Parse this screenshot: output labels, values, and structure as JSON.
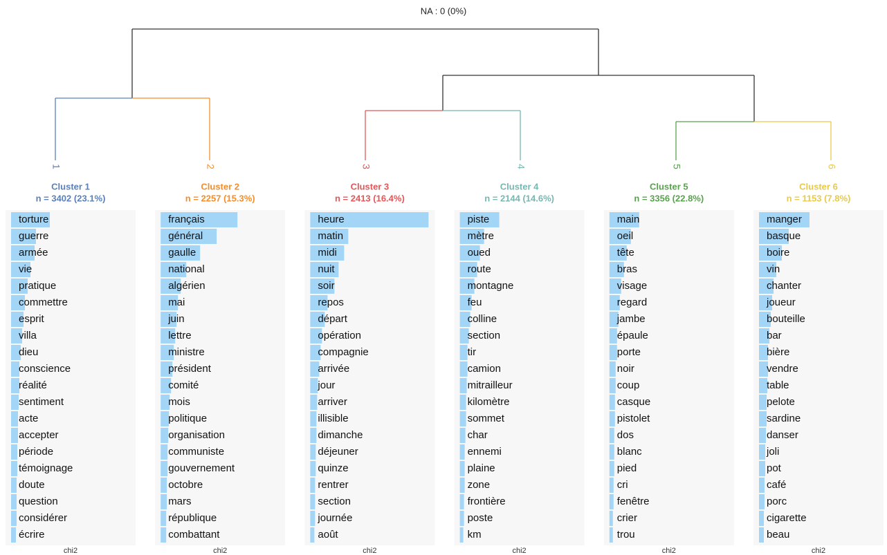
{
  "title": "NA : 0 (0%)",
  "chart_data": [
    {
      "type": "bar",
      "title": "Cluster 1",
      "subtitle": "n = 3402 (23.1%)",
      "leaf": "1",
      "color": "#5b80b8",
      "bar_color": "#a3d5f7",
      "xlabel": "chi2",
      "xlim": [
        0,
        180
      ],
      "categories": [
        "torture",
        "guerre",
        "armée",
        "vie",
        "pratique",
        "commettre",
        "esprit",
        "villa",
        "dieu",
        "conscience",
        "réalité",
        "sentiment",
        "acte",
        "accepter",
        "période",
        "témoignage",
        "doute",
        "question",
        "considérer",
        "écrire"
      ],
      "values": [
        56,
        36,
        34,
        28,
        24,
        20,
        18,
        16,
        14,
        12,
        12,
        11,
        10,
        10,
        9,
        9,
        8,
        8,
        8,
        7
      ]
    },
    {
      "type": "bar",
      "title": "Cluster 2",
      "subtitle": "n = 2257 (15.3%)",
      "leaf": "2",
      "color": "#f28e2b",
      "bar_color": "#a3d5f7",
      "xlabel": "chi2",
      "xlim": [
        0,
        180
      ],
      "categories": [
        "français",
        "général",
        "gaulle",
        "national",
        "algérien",
        "mai",
        "juin",
        "lettre",
        "ministre",
        "président",
        "comité",
        "mois",
        "politique",
        "organisation",
        "communiste",
        "gouvernement",
        "octobre",
        "mars",
        "république",
        "combattant"
      ],
      "values": [
        111,
        81,
        57,
        37,
        29,
        25,
        23,
        21,
        19,
        17,
        15,
        13,
        12,
        11,
        10,
        10,
        9,
        9,
        8,
        8
      ]
    },
    {
      "type": "bar",
      "title": "Cluster 3",
      "subtitle": "n = 2413 (16.4%)",
      "leaf": "3",
      "color": "#e15759",
      "bar_color": "#a3d5f7",
      "xlabel": "chi2",
      "xlim": [
        0,
        180
      ],
      "categories": [
        "heure",
        "matin",
        "midi",
        "nuit",
        "soir",
        "repos",
        "départ",
        "opération",
        "compagnie",
        "arrivée",
        "jour",
        "arriver",
        "illisible",
        "dimanche",
        "déjeuner",
        "quinze",
        "rentrer",
        "section",
        "journée",
        "août"
      ],
      "values": [
        171,
        55,
        49,
        41,
        35,
        25,
        21,
        17,
        15,
        13,
        11,
        10,
        9,
        9,
        8,
        8,
        7,
        7,
        7,
        6
      ]
    },
    {
      "type": "bar",
      "title": "Cluster 4",
      "subtitle": "n = 2144 (14.6%)",
      "leaf": "4",
      "color": "#76b7b2",
      "bar_color": "#a3d5f7",
      "xlabel": "chi2",
      "xlim": [
        0,
        180
      ],
      "categories": [
        "piste",
        "mètre",
        "oued",
        "route",
        "montagne",
        "feu",
        "colline",
        "section",
        "tir",
        "camion",
        "mitrailleur",
        "kilomètre",
        "sommet",
        "char",
        "ennemi",
        "plaine",
        "zone",
        "frontière",
        "poste",
        "km"
      ],
      "values": [
        57,
        35,
        29,
        25,
        21,
        17,
        15,
        13,
        11,
        11,
        10,
        9,
        9,
        8,
        7,
        7,
        7,
        6,
        6,
        5
      ]
    },
    {
      "type": "bar",
      "title": "Cluster 5",
      "subtitle": "n = 3356 (22.8%)",
      "leaf": "5",
      "color": "#59a14f",
      "bar_color": "#a3d5f7",
      "xlabel": "chi2",
      "xlim": [
        0,
        180
      ],
      "categories": [
        "main",
        "oeil",
        "tête",
        "bras",
        "visage",
        "regard",
        "jambe",
        "épaule",
        "porte",
        "noir",
        "coup",
        "casque",
        "pistolet",
        "dos",
        "blanc",
        "pied",
        "cri",
        "fenêtre",
        "crier",
        "trou"
      ],
      "values": [
        43,
        31,
        25,
        21,
        17,
        15,
        13,
        11,
        11,
        9,
        9,
        8,
        8,
        7,
        7,
        7,
        6,
        6,
        5,
        5
      ]
    },
    {
      "type": "bar",
      "title": "Cluster 6",
      "subtitle": "n = 1153 (7.8%)",
      "leaf": "6",
      "color": "#e8c94a",
      "bar_color": "#a3d5f7",
      "xlabel": "chi2",
      "xlim": [
        0,
        180
      ],
      "categories": [
        "manger",
        "basque",
        "boire",
        "vin",
        "chanter",
        "joueur",
        "bouteille",
        "bar",
        "bière",
        "vendre",
        "table",
        "pelote",
        "sardine",
        "danser",
        "joli",
        "pot",
        "café",
        "porc",
        "cigarette",
        "beau"
      ],
      "values": [
        73,
        43,
        33,
        25,
        21,
        19,
        17,
        15,
        13,
        13,
        12,
        11,
        11,
        10,
        9,
        9,
        8,
        8,
        7,
        7
      ]
    }
  ]
}
